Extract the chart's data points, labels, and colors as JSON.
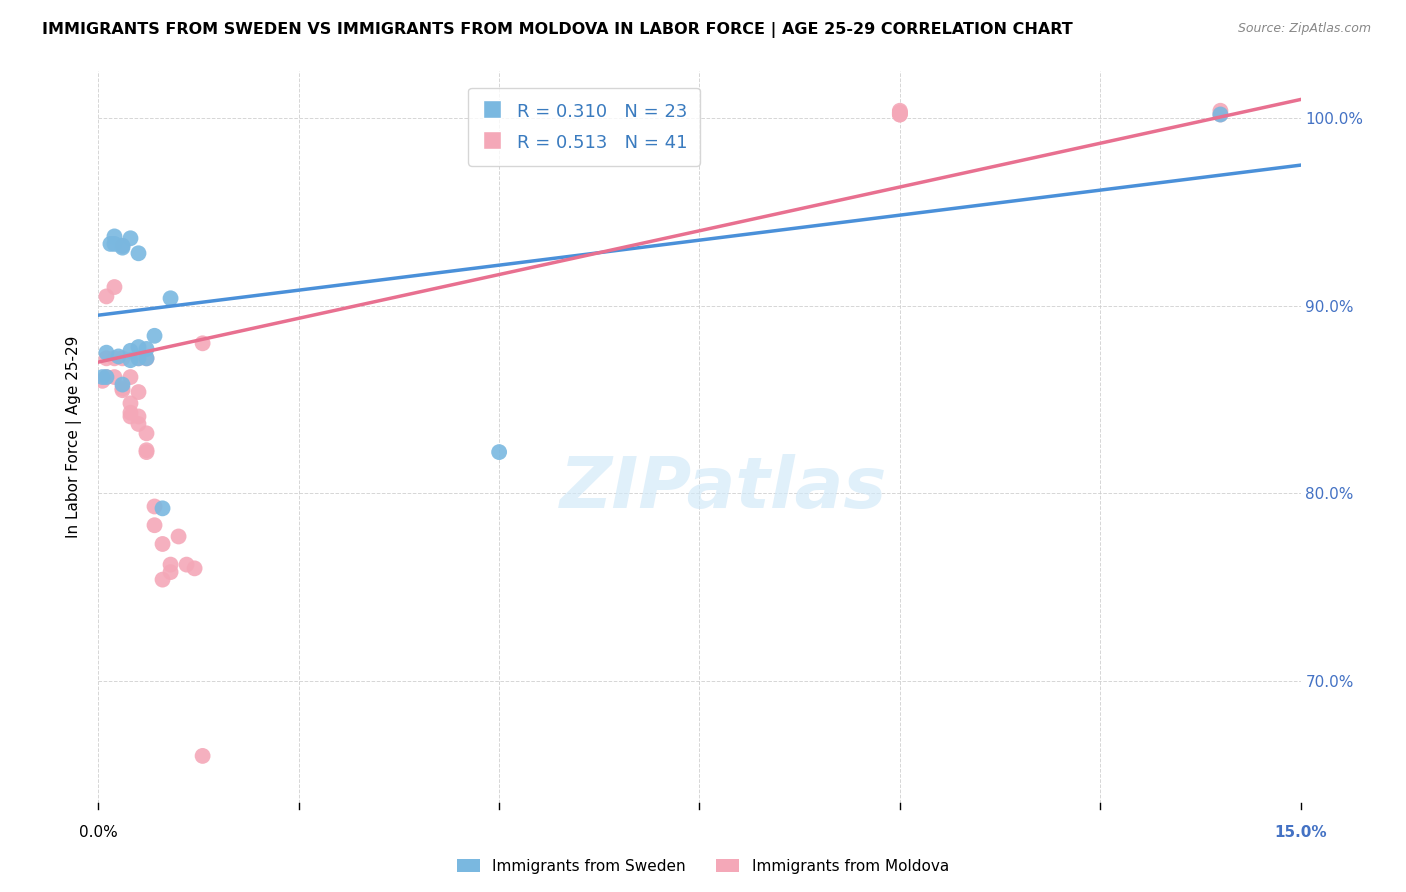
{
  "title": "IMMIGRANTS FROM SWEDEN VS IMMIGRANTS FROM MOLDOVA IN LABOR FORCE | AGE 25-29 CORRELATION CHART",
  "source": "Source: ZipAtlas.com",
  "ylabel": "In Labor Force | Age 25-29",
  "ytick_labels": [
    "100.0%",
    "90.0%",
    "80.0%",
    "70.0%"
  ],
  "ytick_values": [
    1.0,
    0.9,
    0.8,
    0.7
  ],
  "xlim": [
    0.0,
    0.15
  ],
  "ylim": [
    0.635,
    1.025
  ],
  "sweden_color": "#7ab8e0",
  "moldova_color": "#f4a8b8",
  "sweden_line_color": "#4a90d9",
  "moldova_line_color": "#e87090",
  "sweden_R": 0.31,
  "sweden_N": 23,
  "moldova_R": 0.513,
  "moldova_N": 41,
  "watermark": "ZIPatlas",
  "background_color": "#ffffff",
  "grid_color": "#cccccc",
  "sweden_x": [
    0.0005,
    0.001,
    0.001,
    0.0015,
    0.002,
    0.002,
    0.0025,
    0.003,
    0.003,
    0.003,
    0.004,
    0.004,
    0.004,
    0.005,
    0.005,
    0.005,
    0.006,
    0.006,
    0.007,
    0.008,
    0.009,
    0.05,
    0.14
  ],
  "sweden_y": [
    0.862,
    0.862,
    0.875,
    0.933,
    0.933,
    0.937,
    0.873,
    0.858,
    0.932,
    0.931,
    0.871,
    0.876,
    0.936,
    0.872,
    0.878,
    0.928,
    0.872,
    0.877,
    0.884,
    0.792,
    0.904,
    0.822,
    1.002
  ],
  "moldova_x": [
    0.0005,
    0.001,
    0.001,
    0.001,
    0.002,
    0.002,
    0.002,
    0.003,
    0.003,
    0.003,
    0.003,
    0.004,
    0.004,
    0.004,
    0.004,
    0.005,
    0.005,
    0.005,
    0.005,
    0.006,
    0.006,
    0.006,
    0.006,
    0.007,
    0.007,
    0.008,
    0.008,
    0.009,
    0.009,
    0.01,
    0.011,
    0.012,
    0.013,
    0.013,
    0.1,
    0.1,
    0.1,
    0.1,
    0.1,
    0.14,
    0.14
  ],
  "moldova_y": [
    0.86,
    0.862,
    0.872,
    0.905,
    0.862,
    0.872,
    0.91,
    0.855,
    0.856,
    0.872,
    0.932,
    0.841,
    0.843,
    0.848,
    0.862,
    0.837,
    0.841,
    0.854,
    0.872,
    0.822,
    0.823,
    0.832,
    0.872,
    0.783,
    0.793,
    0.754,
    0.773,
    0.758,
    0.762,
    0.777,
    0.762,
    0.76,
    0.88,
    0.66,
    1.002,
    1.003,
    1.003,
    1.004,
    1.002,
    1.004,
    1.002
  ]
}
